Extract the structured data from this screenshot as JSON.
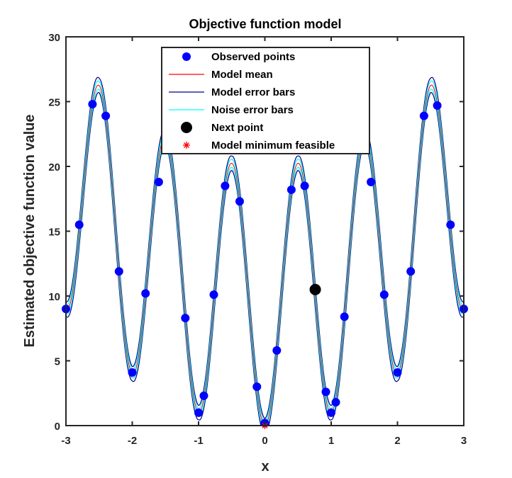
{
  "chart_data": {
    "type": "scatter",
    "title": "Objective function model",
    "xlabel": "x",
    "ylabel": "Estimated objective function value",
    "xlim": [
      -3,
      3
    ],
    "ylim": [
      0,
      30
    ],
    "xticks": [
      "-3",
      "-2",
      "-1",
      "0",
      "1",
      "2",
      "3"
    ],
    "yticks": [
      "0",
      "5",
      "10",
      "15",
      "20",
      "25",
      "30"
    ],
    "grid": false,
    "legend_position": "top-center",
    "legend": [
      {
        "label": "Observed points",
        "marker": "filled-circle",
        "color": "#0000FF"
      },
      {
        "label": "Model mean",
        "marker": "line",
        "color": "#FF0000"
      },
      {
        "label": "Model error bars",
        "marker": "line",
        "color": "#00008B"
      },
      {
        "label": "Noise error bars",
        "marker": "line",
        "color": "#00FFFF"
      },
      {
        "label": "Next point",
        "marker": "filled-circle",
        "color": "#000000"
      },
      {
        "label": "Model minimum feasible",
        "marker": "asterisk",
        "color": "#FF0000"
      }
    ],
    "series": [
      {
        "name": "Observed points",
        "color": "#0000FF",
        "points": [
          {
            "x": -3.0,
            "y": 9.0
          },
          {
            "x": -2.8,
            "y": 15.5
          },
          {
            "x": -2.6,
            "y": 24.8
          },
          {
            "x": -2.4,
            "y": 23.9
          },
          {
            "x": -2.2,
            "y": 11.9
          },
          {
            "x": -2.0,
            "y": 4.1
          },
          {
            "x": -1.8,
            "y": 10.2
          },
          {
            "x": -1.6,
            "y": 18.8
          },
          {
            "x": -1.2,
            "y": 8.3
          },
          {
            "x": -1.0,
            "y": 1.0
          },
          {
            "x": -0.92,
            "y": 2.3
          },
          {
            "x": -0.77,
            "y": 10.1
          },
          {
            "x": -0.6,
            "y": 18.5
          },
          {
            "x": -0.38,
            "y": 17.3
          },
          {
            "x": -0.12,
            "y": 3.0
          },
          {
            "x": 0.0,
            "y": 0.2
          },
          {
            "x": 0.18,
            "y": 5.8
          },
          {
            "x": 0.4,
            "y": 18.2
          },
          {
            "x": 0.6,
            "y": 18.5
          },
          {
            "x": 0.92,
            "y": 2.6
          },
          {
            "x": 1.0,
            "y": 1.0
          },
          {
            "x": 1.07,
            "y": 1.8
          },
          {
            "x": 1.2,
            "y": 8.4
          },
          {
            "x": 1.8,
            "y": 10.1
          },
          {
            "x": 1.6,
            "y": 18.8
          },
          {
            "x": 2.0,
            "y": 4.1
          },
          {
            "x": 2.2,
            "y": 11.9
          },
          {
            "x": 2.4,
            "y": 23.9
          },
          {
            "x": 2.6,
            "y": 24.7
          },
          {
            "x": 2.8,
            "y": 15.5
          },
          {
            "x": 3.0,
            "y": 9.0
          }
        ]
      },
      {
        "name": "Model mean",
        "color": "#FF0000",
        "formula": "x^2 + 10 - 10*cos(2*pi*x)"
      },
      {
        "name": "Model error bars",
        "color": "#00008B"
      },
      {
        "name": "Noise error bars",
        "color": "#00FFFF"
      },
      {
        "name": "Next point",
        "color": "#000000",
        "points": [
          {
            "x": 0.76,
            "y": 10.5
          }
        ]
      },
      {
        "name": "Model minimum feasible",
        "color": "#FF0000",
        "points": [
          {
            "x": 0.0,
            "y": 0.0
          }
        ]
      }
    ]
  }
}
